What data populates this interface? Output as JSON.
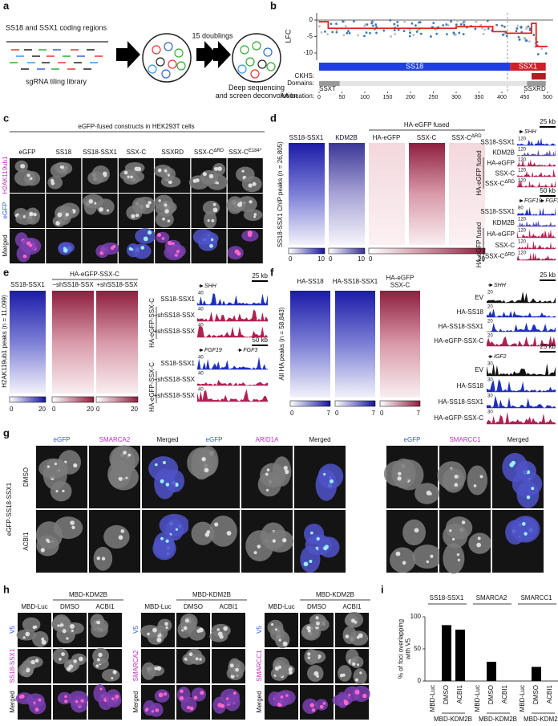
{
  "a": {
    "label": "a",
    "top": "SS18 and SSX1 coding regions",
    "bottom": "sgRNA tiling library",
    "arrow": "15 doublings",
    "result": [
      "Deep sequencing",
      "and screen deconvolution"
    ]
  },
  "b": {
    "label": "b",
    "ylabel": "LFC",
    "ylim": [
      -12,
      2
    ],
    "yticks": [
      0,
      -5,
      -10
    ],
    "xlabel": "AA location:",
    "xlim": [
      0,
      500
    ],
    "xticks": [
      0,
      50,
      100,
      150,
      200,
      250,
      300,
      350,
      400,
      450,
      500
    ],
    "proteins": [
      "SS18",
      "SSX1"
    ],
    "ckhs": "CKHS:",
    "domains": "Domains:",
    "domain_names": [
      "SSXT",
      "SSXRD"
    ]
  },
  "c": {
    "label": "c",
    "title": "eGFP-fused constructs in HEK293T cells",
    "columns": [
      "eGFP",
      "SS18",
      "SS18-SSX1",
      "SSX-C",
      "SSXRD",
      {
        "text": "SSX-C",
        "sup": "ΔRD"
      },
      {
        "text": "SSX-C",
        "sup": "E184*"
      }
    ],
    "rows": [
      "H2AK119ub1",
      "eGFP",
      "Merged"
    ]
  },
  "d": {
    "label": "d",
    "ylabel": "SS18-SSX1 ChIP peaks (n = 26,805)",
    "group": "HA-eGFP fused",
    "columns": [
      "SS18-SSX1",
      "KDM2B",
      "HA-eGFP",
      "SSX-C",
      {
        "text": "SSX-C",
        "sup": "ΔRD"
      }
    ],
    "colorbars": [
      [
        0,
        10
      ],
      [
        0,
        10
      ],
      [
        0,
        20
      ]
    ],
    "loci": [
      {
        "scale": "25 kb",
        "genes": [
          "SHH"
        ],
        "group": "HA-eGFP fused",
        "tracks": [
          "SS18-SSX1",
          "KDM2B",
          "HA-eGFP",
          "SSX-C",
          {
            "text": "SSX-C",
            "sup": "ΔRD"
          }
        ],
        "max": [
          120,
          120,
          120,
          120,
          120
        ]
      },
      {
        "scale": "50 kb",
        "genes": [
          "FGF19",
          "FGF3"
        ],
        "group": "HA-eGFP fused",
        "tracks": [
          "SS18-SSX1",
          "KDM2B",
          "HA-eGFP",
          "SSX-C",
          {
            "text": "SSX-C",
            "sup": "ΔRD"
          }
        ],
        "max": [
          80,
          120,
          120,
          120,
          120
        ]
      }
    ]
  },
  "e": {
    "label": "e",
    "ylabel": "H2AK119ub1 peaks (n = 11,099)",
    "group": "HA-eGFP-SSX-C",
    "columns": [
      "SS18-SSX1",
      "−shSS18-SSX",
      "+shSS18-SSX"
    ],
    "colorbars": [
      [
        0,
        20
      ],
      [
        0,
        20
      ],
      [
        0,
        20
      ]
    ],
    "loci": [
      {
        "scale": "25 kb",
        "genes": [
          "SHH"
        ],
        "group": "HA-eGFP-SSX-C",
        "tracks": [
          "SS18-SSX1",
          "−shSS18-SSX",
          "+shSS18-SSX"
        ],
        "max": [
          40,
          40,
          40
        ]
      },
      {
        "scale": "50 kb",
        "genes": [
          "FGF19",
          "FGF3"
        ],
        "group": "HA-eGFP-SSX-C",
        "tracks": [
          "SS18-SSX1",
          "−shSS18-SSX",
          "+shSS18-SSX"
        ],
        "max": [
          40,
          40,
          40
        ]
      }
    ]
  },
  "f": {
    "label": "f",
    "ylabel": "All HA peaks (n = 58,843)",
    "columns": [
      "HA-SS18",
      "HA-SS18-SSX1",
      [
        "HA-eGFP",
        "SSX-C"
      ]
    ],
    "colorbars": [
      [
        0,
        7
      ],
      [
        0,
        7
      ],
      [
        0,
        7
      ]
    ],
    "loci": [
      {
        "scale": "25 kb",
        "genes": [
          "SHH"
        ],
        "tracks": [
          "EV",
          "HA-SS18",
          "HA-SS18-SSX1",
          "HA-eGFP-SSX-C"
        ],
        "max": [
          20,
          20,
          20,
          20
        ]
      },
      {
        "scale": "25 kb",
        "genes": [
          "IGF2"
        ],
        "tracks": [
          "EV",
          "HA-SS18",
          "HA-SS18-SSX1",
          "HA-eGFP-SSX-C"
        ],
        "max": [
          30,
          30,
          30,
          30
        ]
      }
    ]
  },
  "g": {
    "label": "g",
    "construct": "eGFP-SS18-SSX1",
    "rows": [
      "DMSO",
      "ACBI1"
    ],
    "groups": [
      [
        "eGFP",
        "SMARCA2",
        "Merged"
      ],
      [
        "eGFP",
        "ARID1A",
        "Merged"
      ],
      [
        "eGFP",
        "SMARCC1",
        "Merged"
      ]
    ]
  },
  "h": {
    "label": "h",
    "groups": [
      {
        "header": "MBD-KDM2B",
        "columns": [
          "MBD-Luc",
          "DMSO",
          "ACBI1"
        ],
        "rows": [
          "V5",
          "SS18-SSX1",
          "Merged"
        ]
      },
      {
        "header": "MBD-KDM2B",
        "columns": [
          "MBD-Luc",
          "DMSO",
          "ACBI1"
        ],
        "rows": [
          "V5",
          "SMARCA2",
          "Merged"
        ]
      },
      {
        "header": "MBD-KDM2B",
        "columns": [
          "MBD-Luc",
          "DMSO",
          "ACBI1"
        ],
        "rows": [
          "V5",
          "SMARCC1",
          "Merged"
        ]
      }
    ]
  },
  "i": {
    "label": "i",
    "type": "bar",
    "ylabel": [
      "% of foci overlapping",
      "with V5"
    ],
    "ylim": [
      0,
      100
    ],
    "yticks": [
      0,
      50,
      100
    ],
    "color": "#000000",
    "groups": [
      "SS18-SSX1",
      "SMARCA2",
      "SMARCC1"
    ],
    "categories": [
      "MBD-Luc",
      "DMSO",
      "ACBI1"
    ],
    "group_label": "MBD-KDM2B",
    "values": [
      [
        0,
        87,
        80
      ],
      [
        0,
        30,
        0
      ],
      [
        0,
        22,
        0
      ]
    ]
  }
}
